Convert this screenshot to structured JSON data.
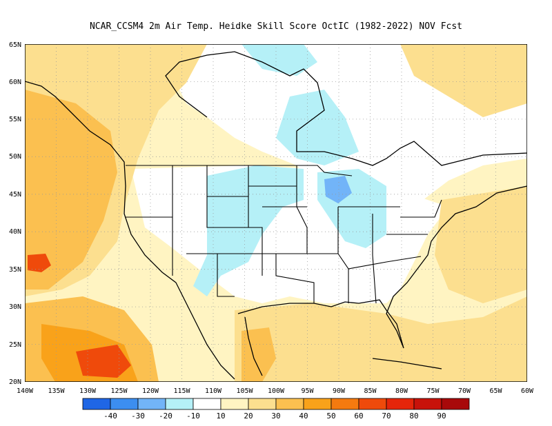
{
  "title": "NCAR_CCSM4  2m Air Temp. Heidke Skill Score OctIC (1982-2022) NOV Fcst",
  "map": {
    "lon_range": [
      -140,
      -60
    ],
    "lat_range": [
      20,
      65
    ],
    "lon_labels": [
      "140W",
      "135W",
      "130W",
      "125W",
      "120W",
      "115W",
      "110W",
      "105W",
      "100W",
      "95W",
      "90W",
      "85W",
      "80W",
      "75W",
      "70W",
      "65W",
      "60W"
    ],
    "lat_labels": [
      "20N",
      "25N",
      "30N",
      "35N",
      "40N",
      "45N",
      "50N",
      "55N",
      "60N",
      "65N"
    ],
    "gridlines": true,
    "colors": {
      "ocean_warm_light": "#fde9a6",
      "land_light": "#fff4c2",
      "moderate": "#fbd068",
      "strong": "#f7a53a",
      "very_strong": "#f07a23",
      "cool_light": "#bfeff5",
      "cool_medium": "#7fb8f0"
    }
  },
  "legend": {
    "colors": [
      "#1f66e5",
      "#3c8ef0",
      "#72b4f8",
      "#b5f0f7",
      "#ffffff",
      "#fff4c2",
      "#fcdf8f",
      "#fbc050",
      "#f9a21a",
      "#f57a0f",
      "#ef4a0b",
      "#e5250a",
      "#c8120a",
      "#a8090a"
    ],
    "labels": [
      "-40",
      "-30",
      "-20",
      "-10",
      "10",
      "20",
      "30",
      "40",
      "50",
      "60",
      "70",
      "80",
      "90"
    ]
  }
}
